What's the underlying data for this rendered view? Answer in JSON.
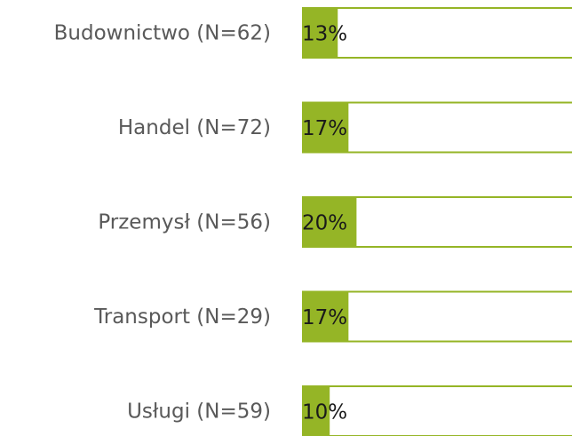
{
  "chart_data": {
    "type": "bar",
    "orientation": "horizontal",
    "categories": [
      "Budownictwo (N=62)",
      "Handel (N=72)",
      "Przemysł (N=56)",
      "Transport (N=29)",
      "Usługi (N=59)"
    ],
    "values": [
      13,
      17,
      20,
      17,
      10
    ],
    "value_labels": [
      "13%",
      "17%",
      "20%",
      "17%",
      "10%"
    ],
    "color": "#95b526",
    "xlim": [
      0,
      100
    ]
  }
}
